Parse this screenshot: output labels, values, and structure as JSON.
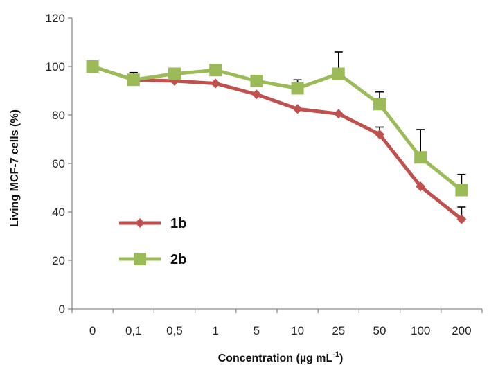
{
  "chart_data": {
    "type": "line",
    "title": "",
    "xlabel": "Concentration (µg mL",
    "xlabel_superscript": "-1",
    "xlabel_suffix": ")",
    "ylabel": "Living MCF-7 cells (%)",
    "categories": [
      "0",
      "0,1",
      "0,5",
      "1",
      "5",
      "10",
      "25",
      "50",
      "100",
      "200"
    ],
    "ylim": [
      0,
      120
    ],
    "yticks": [
      "0",
      "20",
      "40",
      "60",
      "80",
      "100",
      "120"
    ],
    "ytick_values": [
      0,
      20,
      40,
      60,
      80,
      100,
      120
    ],
    "grid": false,
    "legend_position": "lower-left",
    "series": [
      {
        "name": "1b",
        "color": "#c0504d",
        "marker": "diamond",
        "values": [
          100,
          94.5,
          94,
          93,
          88.5,
          82.5,
          80.5,
          72,
          50.5,
          37
        ],
        "error_plus": [
          0,
          3,
          0,
          0,
          0,
          0,
          0,
          3,
          0,
          5
        ]
      },
      {
        "name": "2b",
        "color": "#9bbb59",
        "marker": "square",
        "values": [
          100,
          94.5,
          97,
          98.5,
          94,
          91,
          97,
          84.5,
          62.5,
          49
        ],
        "error_plus": [
          0,
          3,
          0,
          0,
          0,
          3.5,
          9,
          5,
          11.5,
          6.5
        ]
      }
    ]
  }
}
